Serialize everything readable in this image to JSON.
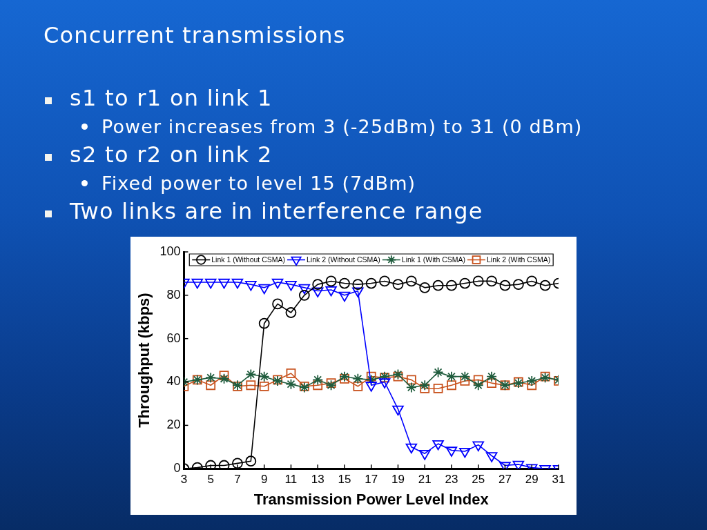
{
  "chart_data": {
    "type": "line",
    "title": "Concurrent transmissions",
    "annotations": [
      "s1 to r1 on link 1",
      "Power increases from 3 (-25dBm) to 31 (0 dBm)",
      "s2 to r2 on link 2",
      "Fixed power to level 15 (7dBm)",
      "Two links are in interference range"
    ],
    "xlabel": "Transmission Power Level Index",
    "ylabel": "Throughput (kbps)",
    "x": [
      3,
      4,
      5,
      6,
      7,
      8,
      9,
      10,
      11,
      12,
      13,
      14,
      15,
      16,
      17,
      18,
      19,
      20,
      21,
      22,
      23,
      24,
      25,
      26,
      27,
      28,
      29,
      30,
      31
    ],
    "xlim": [
      3,
      31
    ],
    "xticks": [
      3,
      5,
      7,
      9,
      11,
      13,
      15,
      17,
      19,
      21,
      23,
      25,
      27,
      29,
      31
    ],
    "ylim": [
      0,
      100
    ],
    "yticks": [
      0,
      20,
      40,
      60,
      80,
      100
    ],
    "grid": false,
    "legend": "top",
    "series": [
      {
        "name": "Link 1 (Without CSMA)",
        "color": "#000000",
        "marker": "circle",
        "values": [
          0,
          0.5,
          1.5,
          1.5,
          2.5,
          3.5,
          67,
          76,
          72,
          80,
          85,
          86.5,
          85.5,
          85,
          85.5,
          86.5,
          85,
          86.5,
          83.5,
          84.5,
          84.5,
          85.5,
          86.5,
          86.5,
          84.5,
          85,
          86.5,
          84.5,
          85.5
        ]
      },
      {
        "name": "Link 2 (Without CSMA)",
        "color": "#0000ff",
        "marker": "triangle",
        "values": [
          86,
          86,
          86,
          86,
          86,
          85,
          83.5,
          86,
          85,
          83.5,
          82,
          82.5,
          80,
          82,
          38.5,
          40,
          27.5,
          10,
          7,
          11.5,
          8.5,
          8,
          11,
          6,
          1.5,
          2,
          0.5,
          0,
          0
        ]
      },
      {
        "name": "Link 1 (With CSMA)",
        "color": "#1f5c3d",
        "marker": "cross",
        "values": [
          40,
          41,
          42,
          41.5,
          38.5,
          43.5,
          42.5,
          40.5,
          39,
          37.5,
          41,
          38.5,
          42.5,
          41.5,
          41,
          42.5,
          43.5,
          37.5,
          38.5,
          44.5,
          42.5,
          42.5,
          38.5,
          42.5,
          38.5,
          39.5,
          40.5,
          42,
          41
        ]
      },
      {
        "name": "Link 2 (With CSMA)",
        "color": "#c8511c",
        "marker": "square",
        "values": [
          38,
          41,
          38.5,
          43,
          38,
          38.5,
          38,
          41,
          44,
          38,
          38.5,
          39.5,
          41.5,
          38,
          42.5,
          42,
          42.5,
          41,
          37,
          37,
          38.5,
          40.5,
          41,
          39.5,
          38.5,
          40,
          38.5,
          42.5,
          40.5
        ]
      }
    ]
  }
}
